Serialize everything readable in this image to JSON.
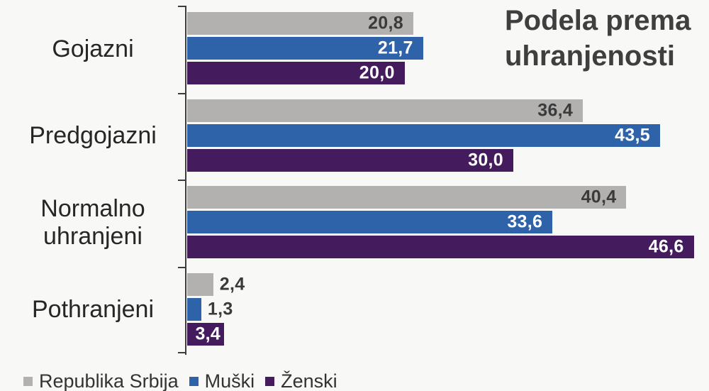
{
  "title": {
    "line1": "Podela prema",
    "line2": "uhranjenosti"
  },
  "chart_data": {
    "type": "bar",
    "orientation": "horizontal",
    "title": "Podela prema uhranjenosti",
    "categories": [
      "Gojazni",
      "Predgojazni",
      "Normalno uhranjeni",
      "Pothranjeni"
    ],
    "series": [
      {
        "name": "Republika Srbija",
        "color": "#b2b1b0",
        "label_color": "#3a3a3a",
        "values": [
          20.8,
          36.4,
          40.4,
          2.4
        ],
        "labels": [
          "20,8",
          "36,4",
          "40,4",
          "2,4"
        ]
      },
      {
        "name": "Muški",
        "color": "#2e62a9",
        "label_color": "#ffffff",
        "values": [
          21.7,
          43.5,
          33.6,
          1.3
        ],
        "labels": [
          "21,7",
          "43,5",
          "33,6",
          "1,3"
        ]
      },
      {
        "name": "Ženski",
        "color": "#441b5d",
        "label_color": "#ffffff",
        "values": [
          20.0,
          30.0,
          46.6,
          3.4
        ],
        "labels": [
          "20,0",
          "30,0",
          "46,6",
          "3,4"
        ]
      }
    ],
    "xlim": [
      0,
      48
    ],
    "grid": false,
    "legend_position": "bottom-left",
    "axis_color": "#3d3d3d",
    "outside_label_color": "#3a3a3a",
    "background": "#f8f8f7"
  }
}
